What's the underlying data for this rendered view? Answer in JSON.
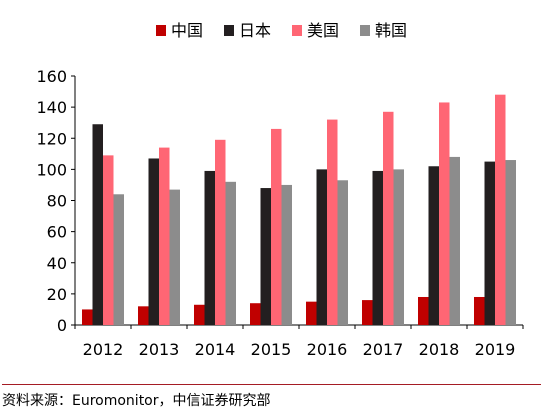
{
  "chart_data": {
    "type": "bar",
    "categories": [
      "2012",
      "2013",
      "2014",
      "2015",
      "2016",
      "2017",
      "2018",
      "2019"
    ],
    "series": [
      {
        "name": "中国",
        "color": "#C00000",
        "values": [
          10,
          12,
          13,
          14,
          15,
          16,
          18,
          18
        ]
      },
      {
        "name": "日本",
        "color": "#231F20",
        "values": [
          129,
          107,
          99,
          88,
          100,
          99,
          102,
          105
        ]
      },
      {
        "name": "美国",
        "color": "#FF6674",
        "values": [
          109,
          114,
          119,
          126,
          132,
          137,
          143,
          148
        ]
      },
      {
        "name": "韩国",
        "color": "#8C8C8C",
        "values": [
          84,
          87,
          92,
          90,
          93,
          100,
          108,
          106
        ]
      }
    ],
    "ylim": [
      0,
      160
    ],
    "yticks": [
      0,
      20,
      40,
      60,
      80,
      100,
      120,
      140,
      160
    ],
    "grid": false,
    "legend_position": "top"
  },
  "source_text": "资料来源：Euromonitor，中信证券研究部",
  "colors": {
    "axis": "#000000",
    "divider": "#A51C24"
  }
}
